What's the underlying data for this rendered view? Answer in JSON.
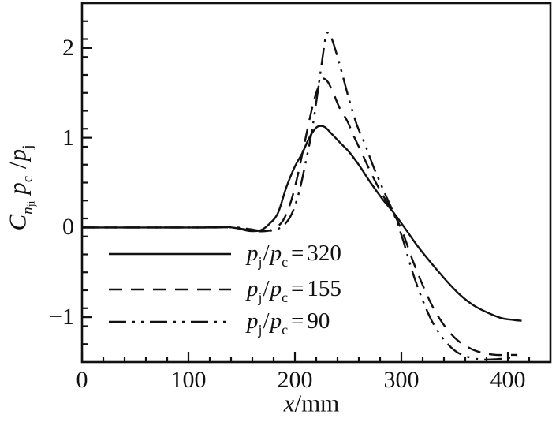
{
  "figure": {
    "background": "#ffffff",
    "line_color": "#111111"
  },
  "chart_data": {
    "type": "line",
    "title": "",
    "xlabel_parts": [
      {
        "text": "x",
        "cls": "it"
      },
      {
        "text": "/mm",
        "cls": ""
      }
    ],
    "ylabel_parts": [
      {
        "text": "C",
        "cls": "it"
      },
      {
        "text": "n",
        "cls": "it sub"
      },
      {
        "text": "ji",
        "cls": "subsub"
      },
      {
        "text": " ",
        "cls": ""
      },
      {
        "text": "p",
        "cls": "it"
      },
      {
        "text": "c",
        "cls": "sub"
      },
      {
        "text": " /",
        "cls": "sl"
      },
      {
        "text": "p",
        "cls": "it"
      },
      {
        "text": "j",
        "cls": "sub"
      }
    ],
    "xlim": [
      0,
      440
    ],
    "ylim": [
      -1.5,
      2.5
    ],
    "x_major_ticks": [
      {
        "v": 0,
        "label": "0"
      },
      {
        "v": 100,
        "label": "100"
      },
      {
        "v": 200,
        "label": "200"
      },
      {
        "v": 300,
        "label": "300"
      },
      {
        "v": 400,
        "label": "400"
      }
    ],
    "x_minor_step": 20,
    "y_major_ticks": [
      {
        "v": -1,
        "label": "−1"
      },
      {
        "v": 0,
        "label": "0"
      },
      {
        "v": 1,
        "label": "1"
      },
      {
        "v": 2,
        "label": "2"
      }
    ],
    "y_minor_step": 0.2,
    "grid": false,
    "legend_position": "inside-lower-left",
    "series": [
      {
        "name": "pj/pc=320",
        "style": "solid",
        "label_parts": [
          {
            "text": "p",
            "cls": "it"
          },
          {
            "text": "j",
            "cls": "sub"
          },
          {
            "text": "/",
            "cls": "sl"
          },
          {
            "text": "p",
            "cls": "it"
          },
          {
            "text": "c",
            "cls": "sub"
          },
          {
            "text": "=",
            "cls": "eq"
          },
          {
            "text": "320",
            "cls": ""
          }
        ],
        "points": [
          [
            0,
            0
          ],
          [
            30,
            0
          ],
          [
            60,
            0
          ],
          [
            90,
            0
          ],
          [
            115,
            0
          ],
          [
            132,
            0.01
          ],
          [
            146,
            -0.01
          ],
          [
            158,
            -0.04
          ],
          [
            168,
            -0.03
          ],
          [
            176,
            0.04
          ],
          [
            184,
            0.16
          ],
          [
            192,
            0.45
          ],
          [
            200,
            0.68
          ],
          [
            207,
            0.83
          ],
          [
            213,
            0.99
          ],
          [
            219,
            1.1
          ],
          [
            223,
            1.13
          ],
          [
            228,
            1.12
          ],
          [
            234,
            1.05
          ],
          [
            242,
            0.95
          ],
          [
            251,
            0.84
          ],
          [
            261,
            0.68
          ],
          [
            271,
            0.5
          ],
          [
            282,
            0.32
          ],
          [
            293,
            0.16
          ],
          [
            304,
            -0.02
          ],
          [
            316,
            -0.22
          ],
          [
            329,
            -0.41
          ],
          [
            342,
            -0.59
          ],
          [
            355,
            -0.75
          ],
          [
            368,
            -0.87
          ],
          [
            381,
            -0.95
          ],
          [
            394,
            -1.01
          ],
          [
            405,
            -1.03
          ],
          [
            413,
            -1.04
          ]
        ]
      },
      {
        "name": "pj/pc=155",
        "style": "dashed",
        "label_parts": [
          {
            "text": "p",
            "cls": "it"
          },
          {
            "text": "j",
            "cls": "sub"
          },
          {
            "text": "/",
            "cls": "sl"
          },
          {
            "text": "p",
            "cls": "it"
          },
          {
            "text": "c",
            "cls": "sub"
          },
          {
            "text": "=",
            "cls": "eq"
          },
          {
            "text": "155",
            "cls": ""
          }
        ],
        "points": [
          [
            0,
            0
          ],
          [
            30,
            0
          ],
          [
            60,
            0
          ],
          [
            90,
            0
          ],
          [
            120,
            0
          ],
          [
            140,
            0
          ],
          [
            152,
            -0.02
          ],
          [
            163,
            -0.04
          ],
          [
            173,
            -0.04
          ],
          [
            181,
            -0.01
          ],
          [
            189,
            0.08
          ],
          [
            196,
            0.28
          ],
          [
            202,
            0.55
          ],
          [
            208,
            0.88
          ],
          [
            214,
            1.22
          ],
          [
            219,
            1.46
          ],
          [
            224,
            1.62
          ],
          [
            227,
            1.66
          ],
          [
            231,
            1.62
          ],
          [
            236,
            1.5
          ],
          [
            242,
            1.33
          ],
          [
            249,
            1.19
          ],
          [
            256,
            1.0
          ],
          [
            264,
            0.8
          ],
          [
            273,
            0.57
          ],
          [
            283,
            0.35
          ],
          [
            293,
            0.15
          ],
          [
            301,
            -0.05
          ],
          [
            311,
            -0.38
          ],
          [
            321,
            -0.67
          ],
          [
            331,
            -0.92
          ],
          [
            342,
            -1.12
          ],
          [
            353,
            -1.26
          ],
          [
            365,
            -1.35
          ],
          [
            377,
            -1.4
          ],
          [
            389,
            -1.42
          ],
          [
            400,
            -1.42
          ],
          [
            409,
            -1.42
          ]
        ]
      },
      {
        "name": "pj/pc=90",
        "style": "dashdotdot",
        "label_parts": [
          {
            "text": "p",
            "cls": "it"
          },
          {
            "text": "j",
            "cls": "sub"
          },
          {
            "text": "/",
            "cls": "sl"
          },
          {
            "text": "p",
            "cls": "it"
          },
          {
            "text": "c",
            "cls": "sub"
          },
          {
            "text": "=",
            "cls": "eq"
          },
          {
            "text": "90",
            "cls": ""
          }
        ],
        "points": [
          [
            0,
            0
          ],
          [
            30,
            0
          ],
          [
            60,
            0
          ],
          [
            90,
            0
          ],
          [
            120,
            0
          ],
          [
            145,
            0
          ],
          [
            158,
            -0.02
          ],
          [
            170,
            -0.04
          ],
          [
            180,
            -0.03
          ],
          [
            189,
            0.02
          ],
          [
            197,
            0.15
          ],
          [
            204,
            0.4
          ],
          [
            210,
            0.72
          ],
          [
            216,
            1.08
          ],
          [
            221,
            1.48
          ],
          [
            226,
            1.9
          ],
          [
            229,
            2.13
          ],
          [
            231,
            2.17
          ],
          [
            234,
            2.12
          ],
          [
            238,
            1.98
          ],
          [
            244,
            1.73
          ],
          [
            251,
            1.42
          ],
          [
            258,
            1.15
          ],
          [
            266,
            0.92
          ],
          [
            274,
            0.67
          ],
          [
            283,
            0.42
          ],
          [
            293,
            0.15
          ],
          [
            301,
            -0.12
          ],
          [
            310,
            -0.48
          ],
          [
            319,
            -0.78
          ],
          [
            329,
            -1.05
          ],
          [
            340,
            -1.25
          ],
          [
            351,
            -1.38
          ],
          [
            362,
            -1.44
          ],
          [
            374,
            -1.47
          ],
          [
            386,
            -1.47
          ],
          [
            397,
            -1.46
          ],
          [
            409,
            -1.44
          ]
        ]
      }
    ]
  }
}
